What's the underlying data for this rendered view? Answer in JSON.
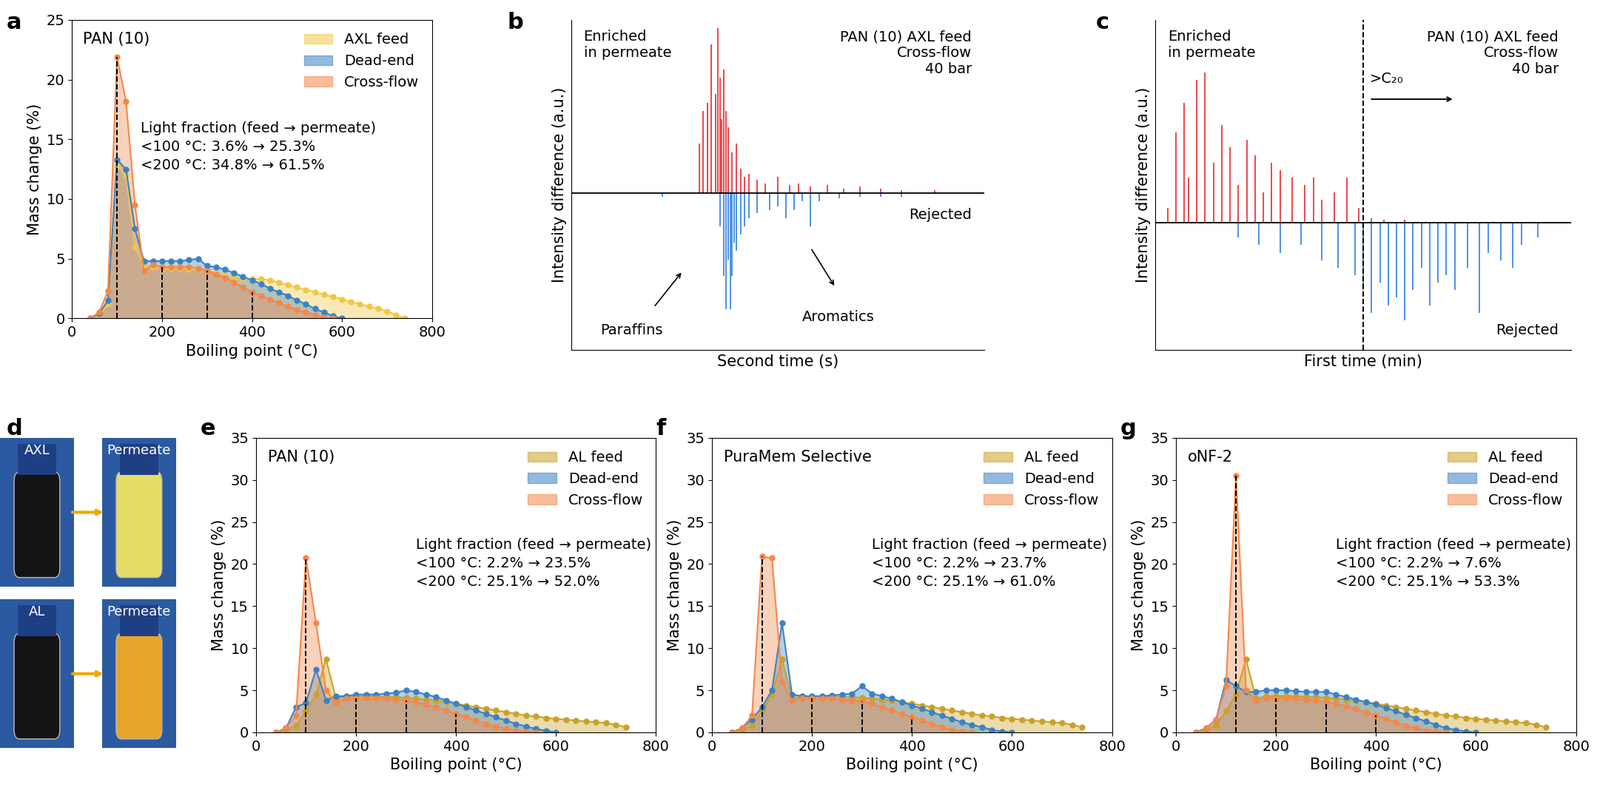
{
  "chart_data": [
    {
      "panel": "a",
      "type": "area",
      "title": "PAN (10)",
      "x_label": "Boiling point (°C)",
      "y_label": "Mass change (%)",
      "xlim": [
        0,
        800
      ],
      "xticks": [
        0,
        200,
        400,
        600,
        800
      ],
      "ylim": [
        0,
        25
      ],
      "yticks": [
        0,
        5,
        10,
        15,
        20,
        25
      ],
      "legend": "upper right",
      "marker": "o",
      "dashed_lines": [
        100,
        200,
        300,
        400
      ],
      "annotations": [
        "Light fraction (feed → permeate)",
        "<100 °C: 3.6% → 25.3%",
        "<200 °C: 34.8% → 61.5%"
      ],
      "x": [
        40,
        60,
        80,
        100,
        120,
        140,
        160,
        180,
        200,
        220,
        240,
        260,
        280,
        300,
        320,
        340,
        360,
        380,
        400,
        420,
        440,
        460,
        480,
        500,
        520,
        540,
        560,
        580,
        600,
        620,
        640,
        660,
        680,
        700,
        720,
        740
      ],
      "series": [
        {
          "name": "AXL feed",
          "color": "#f2c744",
          "values": [
            0,
            0.3,
            1.2,
            12.8,
            12.0,
            6.0,
            4.5,
            4.3,
            4.2,
            4.2,
            4.2,
            4.1,
            4.1,
            4.0,
            3.8,
            3.6,
            3.4,
            3.3,
            3.3,
            3.3,
            3.2,
            3.0,
            2.8,
            2.6,
            2.4,
            2.2,
            2.0,
            1.8,
            1.6,
            1.4,
            1.2,
            1.0,
            0.8,
            0.6,
            0.3,
            0.0
          ]
        },
        {
          "name": "Dead-end",
          "color": "#3b82c4",
          "values": [
            0,
            0.4,
            1.5,
            13.3,
            12.5,
            7.5,
            4.8,
            4.8,
            4.8,
            4.8,
            4.8,
            4.9,
            5.0,
            4.4,
            4.3,
            4.1,
            3.8,
            3.5,
            3.2,
            2.9,
            2.5,
            2.2,
            1.9,
            1.5,
            1.2,
            0.8,
            0.5,
            0.2,
            0.0,
            null,
            null,
            null,
            null,
            null,
            null,
            null
          ]
        },
        {
          "name": "Cross-flow",
          "color": "#f4884a",
          "values": [
            0,
            0.5,
            2.3,
            21.9,
            18.2,
            9.5,
            4.0,
            4.5,
            4.3,
            4.3,
            4.3,
            4.3,
            4.2,
            4.0,
            3.7,
            3.4,
            3.0,
            2.6,
            2.2,
            1.9,
            1.6,
            1.3,
            1.0,
            0.7,
            0.5,
            0.3,
            0.1,
            0.0,
            null,
            null,
            null,
            null,
            null,
            null,
            null,
            null
          ]
        }
      ]
    },
    {
      "panel": "b",
      "type": "spike",
      "x_label": "Second time (s)",
      "y_label": "Intensity difference (a.u.)",
      "xlim": [
        0,
        100
      ],
      "ylim": [
        -0.95,
        1.05
      ],
      "tick_labels": false,
      "texts": {
        "enriched": "Enriched\nin permeate",
        "conditions": "PAN (10) AXL feed\nCross-flow\n40 bar",
        "rejected": "Rejected",
        "paraffins": "Paraffins",
        "aromatics": "Aromatics"
      },
      "series": [
        {
          "color": "#e8282f",
          "x": [
            31,
            32,
            33,
            34,
            35,
            35.5,
            36,
            36.5,
            37,
            37.5,
            38,
            39,
            40,
            41,
            42,
            43,
            45,
            47,
            50,
            53,
            55,
            58,
            62,
            66,
            70,
            75,
            80,
            88
          ],
          "values": [
            0.3,
            0.5,
            0.55,
            0.9,
            0.6,
            1.0,
            0.7,
            0.45,
            0.75,
            0.5,
            0.4,
            0.25,
            0.3,
            0.15,
            0.1,
            0.12,
            0.08,
            0.06,
            0.1,
            0.05,
            0.06,
            0.04,
            0.05,
            0.03,
            0.04,
            0.03,
            0.02,
            0.02
          ]
        },
        {
          "color": "#2f7fdf",
          "x": [
            22,
            36,
            37,
            37.5,
            38,
            38.5,
            39,
            39.5,
            40,
            41,
            42,
            43,
            45,
            48,
            50,
            52,
            54,
            56,
            58,
            60,
            65,
            70,
            75,
            80
          ],
          "values": [
            -0.02,
            -0.2,
            -0.5,
            -0.7,
            -0.4,
            -0.7,
            -0.5,
            -0.3,
            -0.35,
            -0.25,
            -0.2,
            -0.15,
            -0.12,
            -0.1,
            -0.08,
            -0.15,
            -0.1,
            -0.05,
            -0.2,
            -0.05,
            -0.03,
            -0.02,
            -0.02,
            -0.02
          ]
        }
      ]
    },
    {
      "panel": "c",
      "type": "spike",
      "x_label": "First time (min)",
      "y_label": "Intensity difference (a.u.)",
      "xlim": [
        0,
        100
      ],
      "ylim": [
        -0.85,
        1.35
      ],
      "tick_labels": false,
      "divider": 50,
      "texts": {
        "enriched": "Enriched\nin permeate",
        "conditions": "PAN (10) AXL feed\nCross-flow\n40 bar",
        "rejected": "Rejected",
        "divider_label": ">C₂₀"
      },
      "series": [
        {
          "color": "#e8282f",
          "x": [
            3,
            5,
            7,
            8,
            10,
            12,
            14,
            16,
            18,
            20,
            22,
            24,
            26,
            28,
            30,
            33,
            36,
            38,
            40,
            43,
            46,
            49,
            52,
            55,
            60
          ],
          "values": [
            0.1,
            0.6,
            0.8,
            0.3,
            0.95,
            1.0,
            0.4,
            0.65,
            0.5,
            0.25,
            0.55,
            0.45,
            0.2,
            0.4,
            0.35,
            0.3,
            0.25,
            0.3,
            0.15,
            0.2,
            0.3,
            0.1,
            0.03,
            0.02,
            0.02
          ]
        },
        {
          "color": "#2f7fdf",
          "x": [
            20,
            25,
            30,
            35,
            40,
            44,
            48,
            50,
            52,
            54,
            56,
            58,
            60,
            62,
            64,
            66,
            68,
            70,
            72,
            75,
            78,
            80,
            83,
            86,
            88,
            92
          ],
          "values": [
            -0.1,
            -0.15,
            -0.2,
            -0.15,
            -0.25,
            -0.3,
            -0.35,
            -0.45,
            -0.6,
            -0.4,
            -0.55,
            -0.5,
            -0.65,
            -0.45,
            -0.3,
            -0.55,
            -0.4,
            -0.35,
            -0.45,
            -0.3,
            -0.6,
            -0.2,
            -0.25,
            -0.3,
            -0.15,
            -0.1
          ]
        }
      ]
    },
    {
      "panel": "d",
      "type": "image",
      "vials": [
        {
          "label": "AXL",
          "color": "#141414"
        },
        {
          "label": "Permeate",
          "color": "#e4dc66"
        },
        {
          "label": "AL",
          "color": "#141414"
        },
        {
          "label": "Permeate",
          "color": "#e6a42a"
        }
      ]
    },
    {
      "panel": "e",
      "type": "area",
      "title": "PAN (10)",
      "x_label": "Boiling point (°C)",
      "y_label": "Mass change (%)",
      "xlim": [
        0,
        800
      ],
      "xticks": [
        0,
        200,
        400,
        600,
        800
      ],
      "ylim": [
        0,
        35
      ],
      "yticks": [
        0,
        5,
        10,
        15,
        20,
        25,
        30,
        35
      ],
      "legend": "upper right",
      "marker": "o",
      "dashed_lines": [
        100,
        200,
        300,
        400
      ],
      "annotations": [
        "Light fraction (feed → permeate)",
        "<100 °C: 2.2% → 23.5%",
        "<200 °C: 25.1% → 52.0%"
      ],
      "x": [
        40,
        60,
        80,
        100,
        120,
        140,
        160,
        180,
        200,
        220,
        240,
        260,
        280,
        300,
        320,
        340,
        360,
        380,
        400,
        420,
        440,
        460,
        480,
        500,
        520,
        540,
        560,
        580,
        600,
        620,
        640,
        660,
        680,
        700,
        720,
        740
      ],
      "series": [
        {
          "name": "AL feed",
          "color": "#c9a227",
          "values": [
            0,
            0.3,
            0.8,
            2.5,
            4.5,
            8.7,
            4.0,
            4.3,
            4.3,
            4.3,
            4.3,
            4.2,
            4.2,
            4.1,
            4.0,
            3.9,
            3.8,
            3.6,
            3.4,
            3.2,
            3.0,
            2.8,
            2.6,
            2.4,
            2.2,
            2.0,
            1.9,
            1.7,
            1.6,
            1.5,
            1.4,
            1.3,
            1.2,
            1.1,
            0.9,
            0.6
          ]
        },
        {
          "name": "Dead-end",
          "color": "#3b82c4",
          "values": [
            0,
            0.5,
            3.0,
            3.5,
            7.5,
            3.8,
            4.3,
            4.3,
            4.5,
            4.5,
            4.5,
            4.6,
            4.7,
            5.0,
            4.8,
            4.5,
            4.2,
            3.8,
            3.4,
            3.0,
            2.6,
            2.2,
            1.8,
            1.4,
            1.0,
            0.7,
            0.4,
            0.2,
            0.0,
            null,
            null,
            null,
            null,
            null,
            null,
            null
          ]
        },
        {
          "name": "Cross-flow",
          "color": "#f4884a",
          "values": [
            0,
            0.5,
            2.0,
            20.7,
            13.0,
            5.0,
            3.5,
            4.0,
            4.0,
            4.0,
            4.0,
            4.0,
            3.9,
            3.8,
            3.6,
            3.3,
            3.0,
            2.6,
            2.2,
            1.8,
            1.4,
            1.0,
            0.7,
            0.4,
            0.2,
            0.1,
            0.0,
            null,
            null,
            null,
            null,
            null,
            null,
            null,
            null,
            null
          ]
        }
      ]
    },
    {
      "panel": "f",
      "type": "area",
      "title": "PuraMem Selective",
      "x_label": "Boiling point (°C)",
      "y_label": "Mass change (%)",
      "xlim": [
        0,
        800
      ],
      "xticks": [
        0,
        200,
        400,
        600,
        800
      ],
      "ylim": [
        0,
        35
      ],
      "yticks": [
        0,
        5,
        10,
        15,
        20,
        25,
        30,
        35
      ],
      "legend": "upper right",
      "marker": "o",
      "dashed_lines": [
        100,
        200,
        300,
        400
      ],
      "annotations": [
        "Light fraction (feed → permeate)",
        "<100 °C: 2.2% → 23.7%",
        "<200 °C: 25.1% → 61.0%"
      ],
      "x": [
        40,
        60,
        80,
        100,
        120,
        140,
        160,
        180,
        200,
        220,
        240,
        260,
        280,
        300,
        320,
        340,
        360,
        380,
        400,
        420,
        440,
        460,
        480,
        500,
        520,
        540,
        560,
        580,
        600,
        620,
        640,
        660,
        680,
        700,
        720,
        740
      ],
      "series": [
        {
          "name": "AL feed",
          "color": "#c9a227",
          "values": [
            0,
            0.3,
            0.8,
            2.5,
            4.5,
            8.7,
            4.0,
            4.3,
            4.3,
            4.3,
            4.3,
            4.2,
            4.2,
            4.1,
            4.0,
            3.9,
            3.8,
            3.6,
            3.4,
            3.2,
            3.0,
            2.8,
            2.6,
            2.4,
            2.2,
            2.0,
            1.9,
            1.7,
            1.6,
            1.5,
            1.4,
            1.3,
            1.2,
            1.1,
            0.9,
            0.6
          ]
        },
        {
          "name": "Dead-end",
          "color": "#3b82c4",
          "values": [
            0,
            0.5,
            1.5,
            3.0,
            5.0,
            13.0,
            4.5,
            4.3,
            4.3,
            4.3,
            4.4,
            4.5,
            4.6,
            5.5,
            4.6,
            4.3,
            4.0,
            3.6,
            3.2,
            2.8,
            2.4,
            2.0,
            1.6,
            1.2,
            0.9,
            0.6,
            0.3,
            0.1,
            0.0,
            null,
            null,
            null,
            null,
            null,
            null,
            null
          ]
        },
        {
          "name": "Cross-flow",
          "color": "#f4884a",
          "values": [
            0,
            0.5,
            2.0,
            20.9,
            20.7,
            6.0,
            3.8,
            4.0,
            4.0,
            4.0,
            4.0,
            3.9,
            3.8,
            3.7,
            3.4,
            3.0,
            2.6,
            2.2,
            1.8,
            1.4,
            1.0,
            0.6,
            0.3,
            0.1,
            0.0,
            null,
            null,
            null,
            null,
            null,
            null,
            null,
            null,
            null,
            null,
            null
          ]
        }
      ]
    },
    {
      "panel": "g",
      "type": "area",
      "title": "oNF-2",
      "x_label": "Boiling point (°C)",
      "y_label": "Mass change (%)",
      "xlim": [
        0,
        800
      ],
      "xticks": [
        0,
        200,
        400,
        600,
        800
      ],
      "ylim": [
        0,
        35
      ],
      "yticks": [
        0,
        5,
        10,
        15,
        20,
        25,
        30,
        35
      ],
      "legend": "upper right",
      "marker": "o",
      "dashed_lines": [
        120,
        200,
        300,
        400
      ],
      "annotations": [
        "Light fraction (feed → permeate)",
        "<100 °C: 2.2% → 7.6%",
        "<200 °C: 25.1% → 53.3%"
      ],
      "x": [
        40,
        60,
        80,
        100,
        120,
        140,
        160,
        180,
        200,
        220,
        240,
        260,
        280,
        300,
        320,
        340,
        360,
        380,
        400,
        420,
        440,
        460,
        480,
        500,
        520,
        540,
        560,
        580,
        600,
        620,
        640,
        660,
        680,
        700,
        720,
        740
      ],
      "series": [
        {
          "name": "AL feed",
          "color": "#c9a227",
          "values": [
            0,
            0.3,
            0.8,
            2.5,
            4.5,
            8.7,
            4.0,
            4.3,
            4.3,
            4.3,
            4.3,
            4.2,
            4.2,
            4.1,
            4.0,
            3.9,
            3.8,
            3.6,
            3.4,
            3.2,
            3.0,
            2.8,
            2.6,
            2.4,
            2.2,
            2.0,
            1.9,
            1.7,
            1.6,
            1.5,
            1.4,
            1.3,
            1.2,
            1.1,
            0.9,
            0.6
          ]
        },
        {
          "name": "Dead-end",
          "color": "#3b82c4",
          "values": [
            0,
            0.5,
            1.5,
            6.2,
            5.5,
            4.8,
            4.8,
            5.0,
            5.0,
            5.0,
            4.9,
            4.8,
            4.8,
            4.8,
            4.5,
            4.2,
            3.9,
            3.6,
            3.3,
            2.9,
            2.5,
            2.1,
            1.7,
            1.3,
            0.9,
            0.5,
            0.3,
            0.1,
            0.0,
            null,
            null,
            null,
            null,
            null,
            null,
            null
          ]
        },
        {
          "name": "Cross-flow",
          "color": "#f4884a",
          "values": [
            0,
            0.5,
            1.5,
            5.5,
            30.5,
            5.0,
            3.8,
            4.0,
            4.0,
            4.0,
            4.0,
            3.9,
            3.8,
            3.6,
            3.4,
            3.1,
            2.8,
            2.4,
            2.0,
            1.6,
            1.2,
            0.8,
            0.5,
            0.2,
            0.1,
            0.0,
            null,
            null,
            null,
            null,
            null,
            null,
            null,
            null,
            null,
            null
          ]
        }
      ]
    }
  ]
}
